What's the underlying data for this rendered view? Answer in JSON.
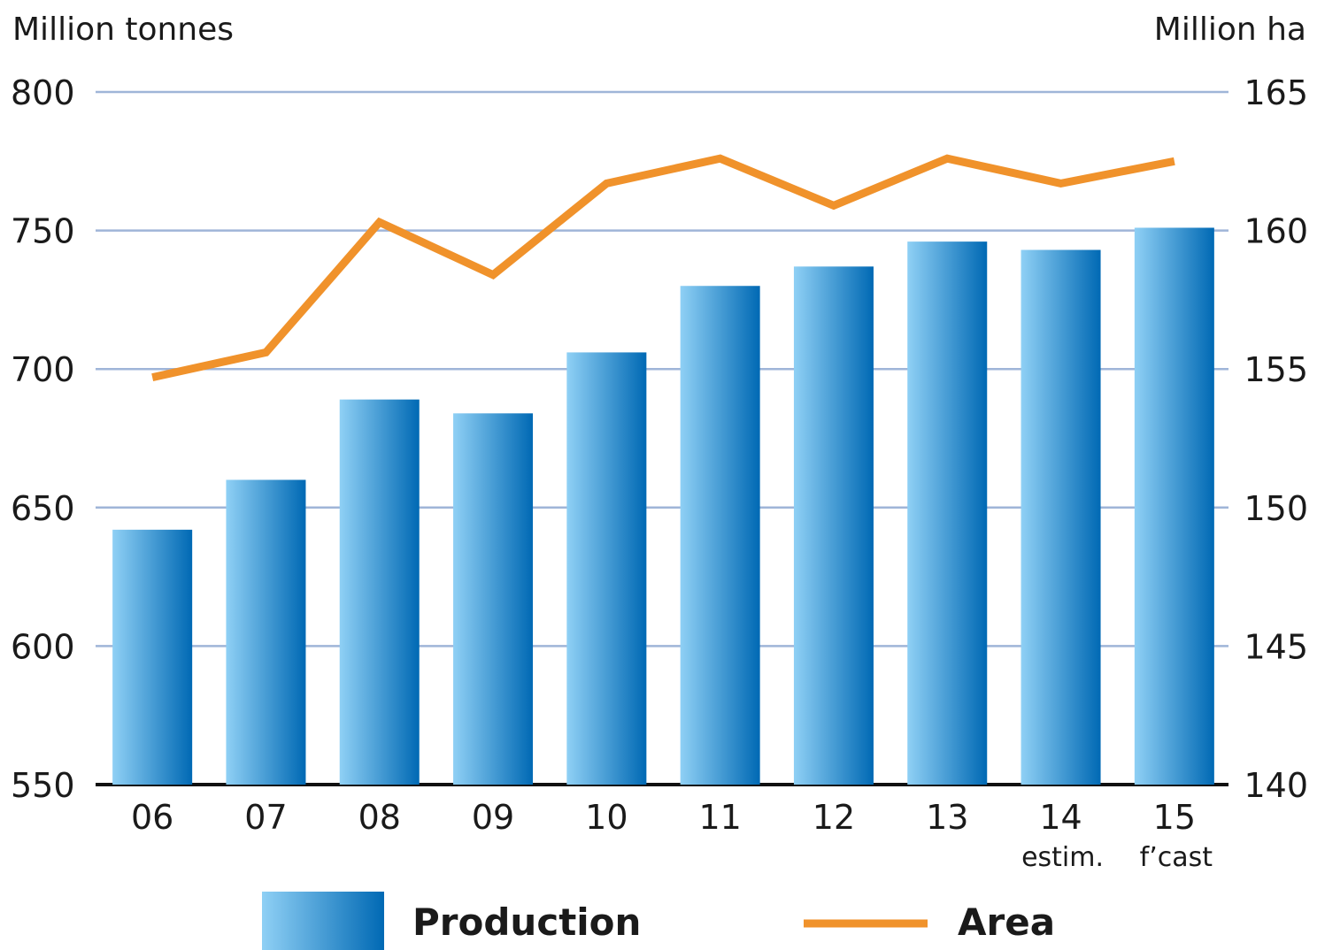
{
  "chart_data": {
    "type": "bar",
    "categories": [
      "06",
      "07",
      "08",
      "09",
      "10",
      "11",
      "12",
      "13",
      "14",
      "15"
    ],
    "category_sublabels": [
      "",
      "",
      "",
      "",
      "",
      "",
      "",
      "",
      "estim.",
      "f’cast"
    ],
    "series": [
      {
        "name": "Production",
        "type": "bar",
        "axis": "left",
        "values": [
          642,
          660,
          689,
          684,
          706,
          730,
          737,
          746,
          743,
          751
        ]
      },
      {
        "name": "Area",
        "type": "line",
        "axis": "right",
        "values": [
          154.7,
          155.6,
          160.3,
          158.4,
          161.7,
          162.6,
          160.9,
          162.6,
          161.7,
          162.5
        ]
      }
    ],
    "ylabel_left": "Million tonnes",
    "ylabel_right": "Million ha",
    "ylim_left": [
      550,
      800
    ],
    "ylim_right": [
      140,
      165
    ],
    "yticks_left": [
      "550",
      "600",
      "650",
      "700",
      "750",
      "800"
    ],
    "yticks_right": [
      "140",
      "145",
      "150",
      "155",
      "160",
      "165"
    ],
    "grid": true,
    "legend": "bottom",
    "colors": {
      "bar_light": "#8fd0f5",
      "bar_dark": "#0069b4",
      "line": "#f0922b",
      "grid": "#9fb5d8"
    }
  }
}
